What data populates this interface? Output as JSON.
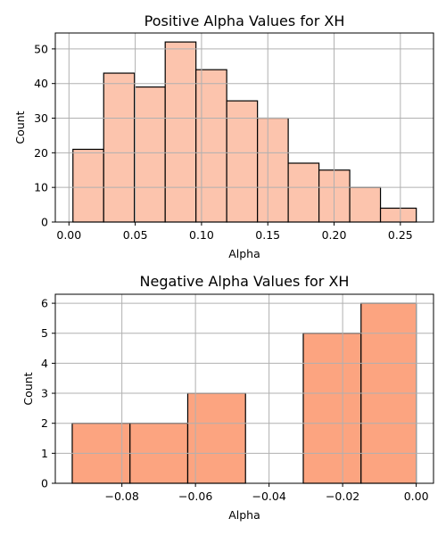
{
  "colors": {
    "positive_fill": "#fcc4ad",
    "negative_fill": "#fca480",
    "bar_edge": "#000000",
    "grid": "#b0b0b0",
    "axis": "#000000"
  },
  "chart_data": [
    {
      "type": "bar",
      "title": "Positive Alpha Values for XH",
      "xlabel": "Alpha",
      "ylabel": "Count",
      "bin_edges": [
        0.003,
        0.0262,
        0.0494,
        0.0726,
        0.0958,
        0.119,
        0.1422,
        0.1654,
        0.1886,
        0.2118,
        0.235,
        0.262
      ],
      "values": [
        21,
        43,
        39,
        52,
        44,
        35,
        30,
        17,
        15,
        10,
        4
      ],
      "xlim": [
        -0.0103,
        0.275
      ],
      "ylim": [
        0,
        54.6
      ],
      "xticks": [
        0.0,
        0.05,
        0.1,
        0.15,
        0.2,
        0.25
      ],
      "xtick_labels": [
        "0.00",
        "0.05",
        "0.10",
        "0.15",
        "0.20",
        "0.25"
      ],
      "yticks": [
        0,
        10,
        20,
        30,
        40,
        50
      ],
      "ytick_labels": [
        "0",
        "10",
        "20",
        "30",
        "40",
        "50"
      ],
      "grid": true,
      "fill_color": "#fcc4ad"
    },
    {
      "type": "bar",
      "title": "Negative Alpha Values for XH",
      "xlabel": "Alpha",
      "ylabel": "Count",
      "bin_edges": [
        -0.0935,
        -0.0778,
        -0.0621,
        -0.0464,
        -0.0307,
        -0.015,
        0.0
      ],
      "values": [
        2,
        2,
        3,
        0,
        5,
        6
      ],
      "xlim": [
        -0.0981,
        0.0047
      ],
      "ylim": [
        0,
        6.3
      ],
      "xticks": [
        -0.08,
        -0.06,
        -0.04,
        -0.02,
        0.0
      ],
      "xtick_labels": [
        "−0.08",
        "−0.06",
        "−0.04",
        "−0.02",
        "0.00"
      ],
      "yticks": [
        0,
        1,
        2,
        3,
        4,
        5,
        6
      ],
      "ytick_labels": [
        "0",
        "1",
        "2",
        "3",
        "4",
        "5",
        "6"
      ],
      "grid": true,
      "fill_color": "#fca480"
    }
  ]
}
